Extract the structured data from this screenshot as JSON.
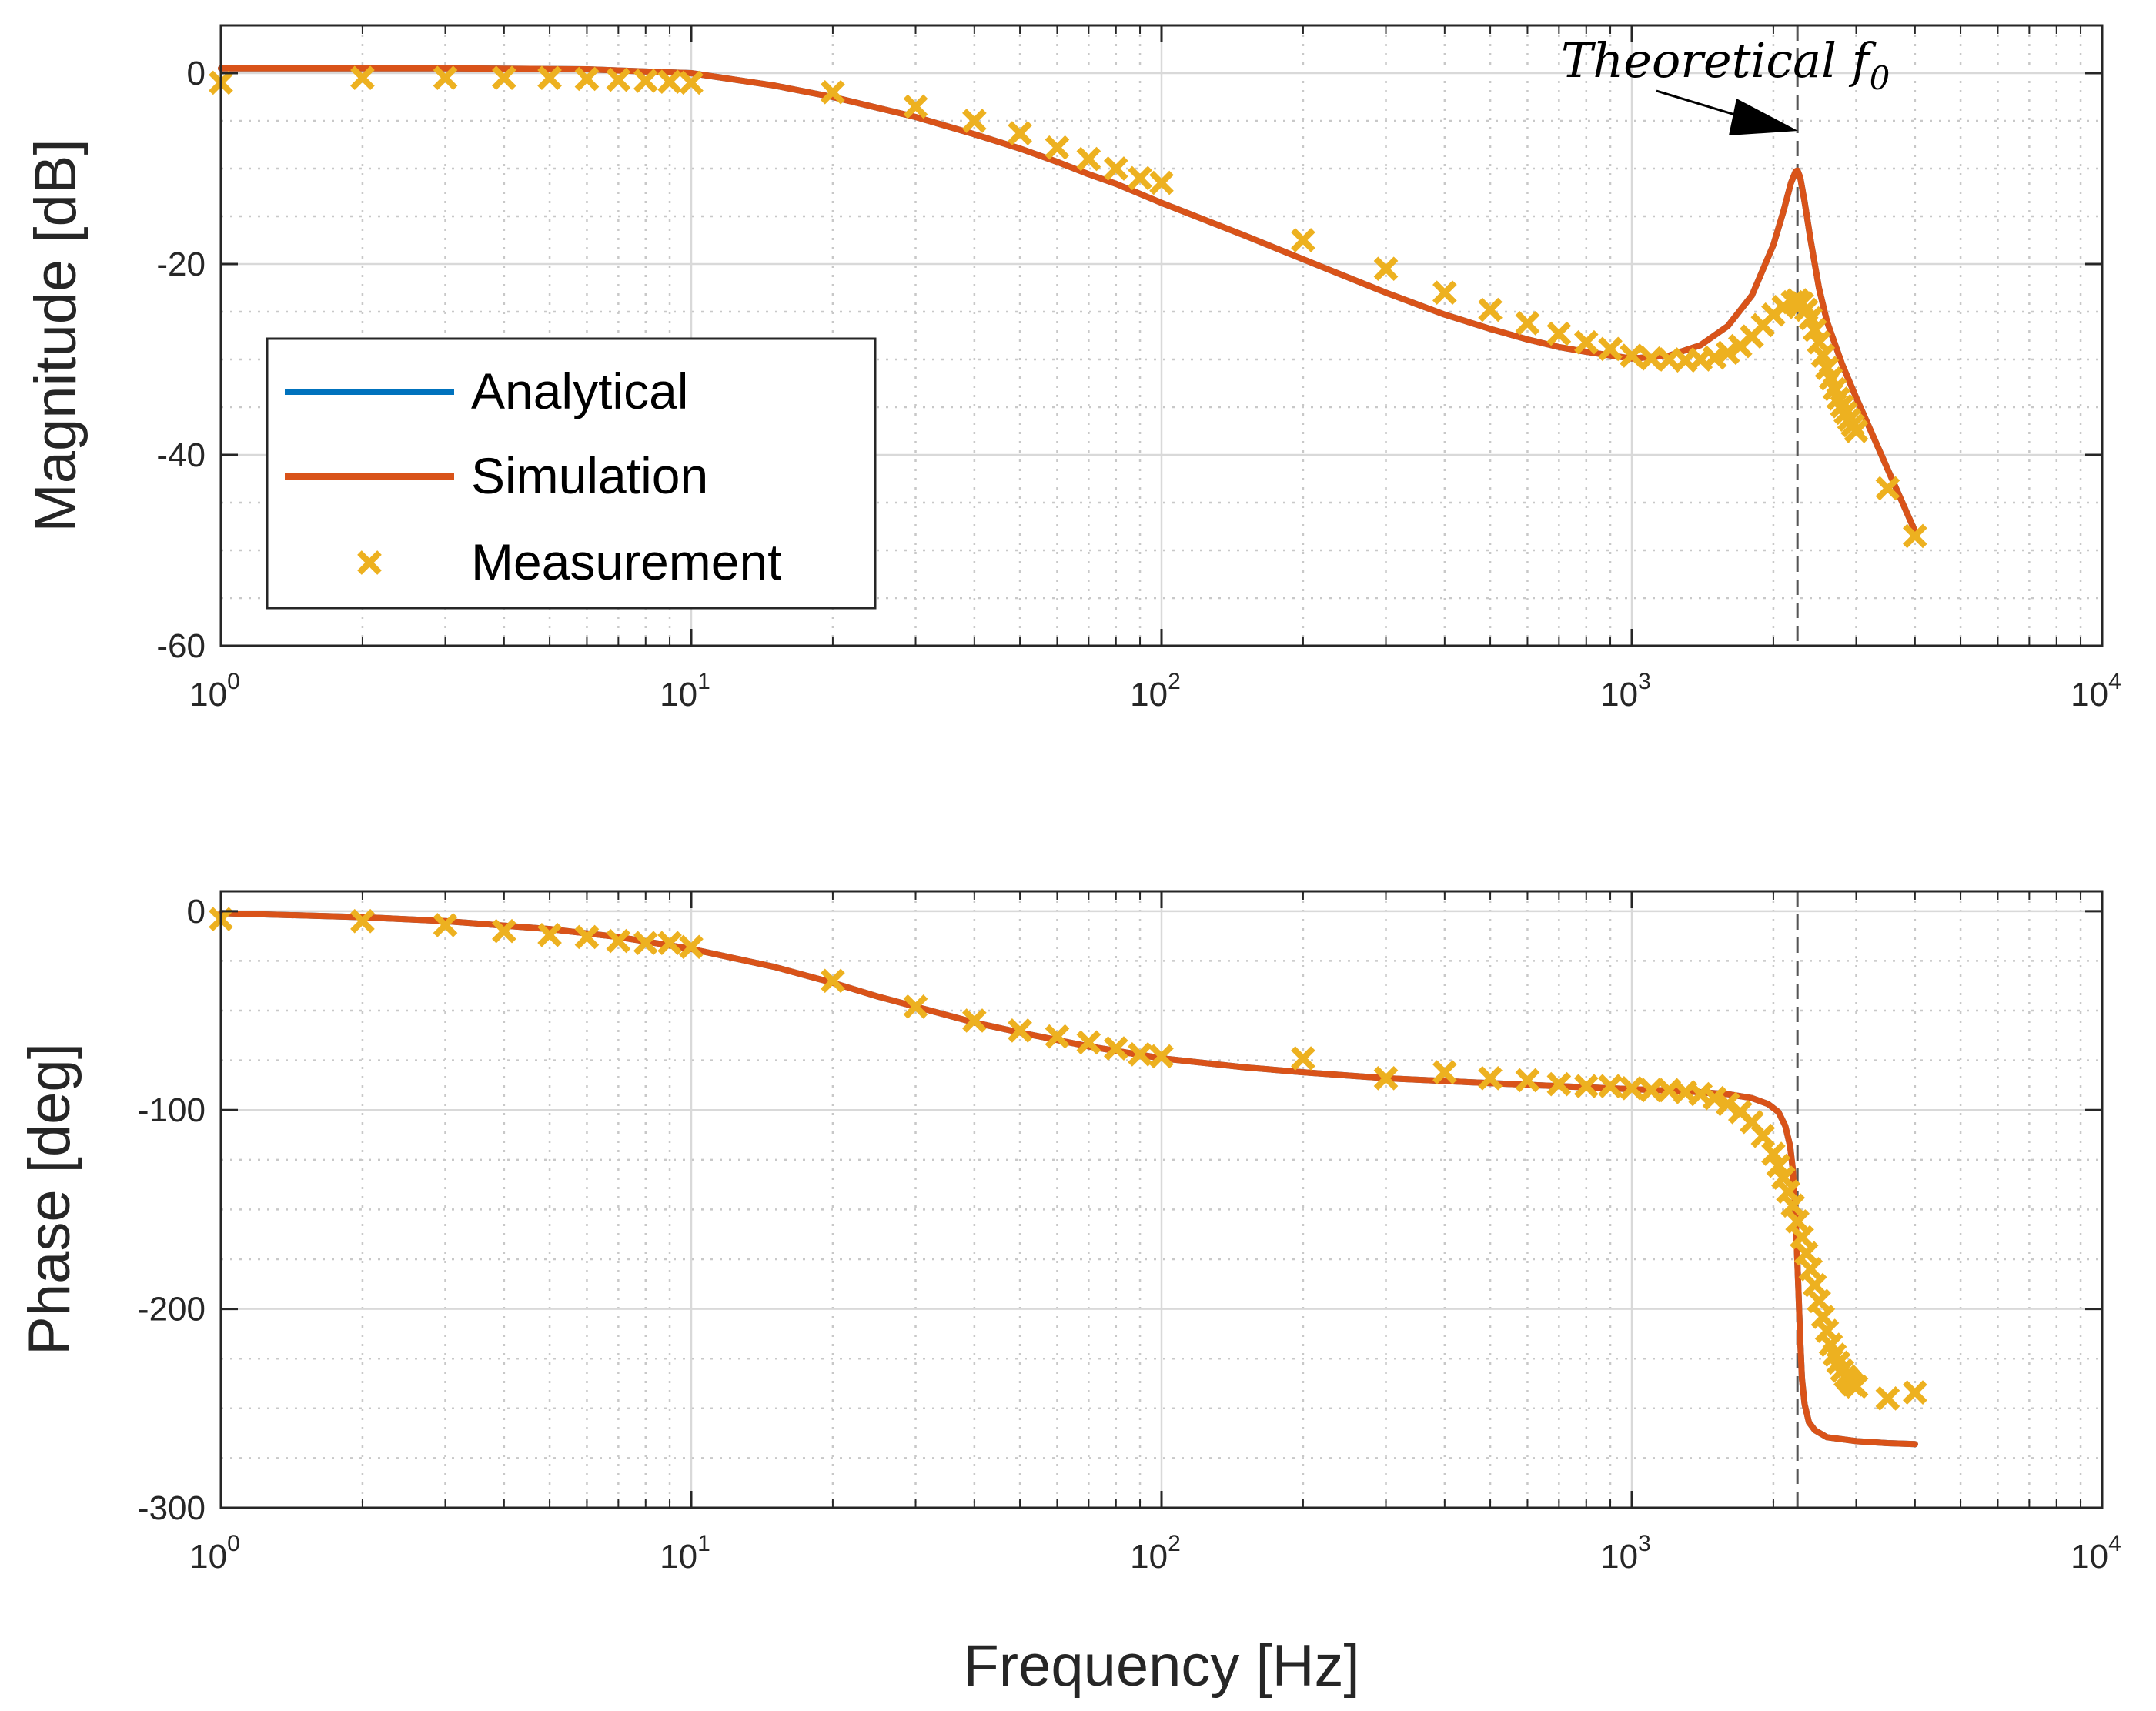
{
  "colors": {
    "analytical": "#0072BD",
    "simulation": "#D95319",
    "measurement": "#EDB120",
    "axis": "#262626",
    "grid": "#d9d9d9",
    "marker_line": "#555555"
  },
  "chart_data": [
    {
      "type": "line",
      "panel": "magnitude",
      "xscale": "log",
      "xlim": [
        1,
        10000
      ],
      "ylim": [
        -60,
        5
      ],
      "yticks": [
        0,
        -20,
        -40,
        -60
      ],
      "ytick_labels": [
        "0",
        "-20",
        "-40",
        "-60"
      ],
      "xtick_bases": [
        "10",
        "10",
        "10",
        "10",
        "10"
      ],
      "xtick_exponents": [
        "0",
        "1",
        "2",
        "3",
        "4"
      ],
      "xlabel": "",
      "ylabel": "Magnitude [dB]",
      "grid": true,
      "legend": {
        "location": "middle-left",
        "entries": [
          "Analytical",
          "Simulation",
          "Measurement"
        ]
      },
      "annotation": {
        "text": "Theoretical f",
        "subscript": "0",
        "x": 2250
      },
      "series": [
        {
          "name": "Analytical",
          "style": "line",
          "x": [
            1,
            3,
            6,
            10,
            15,
            20,
            30,
            40,
            50,
            60,
            70,
            80,
            100,
            150,
            200,
            300,
            400,
            500,
            600,
            700,
            800,
            1000,
            1200,
            1400,
            1600,
            1800,
            2000,
            2100,
            2180,
            2230,
            2250,
            2280,
            2330,
            2400,
            2500,
            2600,
            2800,
            3000,
            3500,
            4000
          ],
          "values": [
            0.5,
            0.5,
            0.4,
            0.0,
            -1.3,
            -2.5,
            -4.6,
            -6.4,
            -7.9,
            -9.3,
            -10.6,
            -11.6,
            -13.6,
            -17.0,
            -19.5,
            -23.0,
            -25.3,
            -26.8,
            -27.9,
            -28.7,
            -29.2,
            -29.9,
            -29.6,
            -28.5,
            -26.5,
            -23.3,
            -18.0,
            -14.5,
            -11.5,
            -10.3,
            -10.2,
            -10.9,
            -13.5,
            -17.5,
            -22.5,
            -26.0,
            -30.5,
            -34.0,
            -41.5,
            -48.0
          ]
        },
        {
          "name": "Simulation",
          "style": "line",
          "x": [
            1,
            3,
            6,
            10,
            15,
            20,
            30,
            40,
            50,
            60,
            70,
            80,
            100,
            150,
            200,
            300,
            400,
            500,
            600,
            700,
            800,
            1000,
            1200,
            1400,
            1600,
            1800,
            2000,
            2100,
            2180,
            2230,
            2250,
            2280,
            2330,
            2400,
            2500,
            2600,
            2800,
            3000,
            3500,
            4000
          ],
          "values": [
            0.5,
            0.5,
            0.4,
            0.0,
            -1.3,
            -2.5,
            -4.6,
            -6.4,
            -7.9,
            -9.3,
            -10.6,
            -11.6,
            -13.6,
            -17.0,
            -19.5,
            -23.0,
            -25.3,
            -26.8,
            -27.9,
            -28.7,
            -29.2,
            -29.9,
            -29.6,
            -28.5,
            -26.5,
            -23.3,
            -18.0,
            -14.5,
            -11.5,
            -10.3,
            -10.2,
            -10.9,
            -13.5,
            -17.5,
            -22.5,
            -26.0,
            -30.5,
            -34.0,
            -41.5,
            -48.0
          ]
        },
        {
          "name": "Measurement",
          "style": "marker",
          "x": [
            1,
            2,
            3,
            4,
            5,
            6,
            7,
            8,
            9,
            10,
            20,
            30,
            40,
            50,
            60,
            70,
            80,
            90,
            100,
            200,
            300,
            400,
            500,
            600,
            700,
            800,
            900,
            1000,
            1100,
            1200,
            1300,
            1400,
            1500,
            1600,
            1700,
            1800,
            1900,
            2000,
            2100,
            2200,
            2250,
            2300,
            2350,
            2400,
            2450,
            2500,
            2550,
            2600,
            2650,
            2700,
            2750,
            2800,
            2850,
            2900,
            2950,
            3000,
            3500,
            4000
          ],
          "values": [
            -1.0,
            -0.5,
            -0.5,
            -0.5,
            -0.5,
            -0.6,
            -0.7,
            -0.8,
            -0.9,
            -1.0,
            -2.0,
            -3.5,
            -5.0,
            -6.3,
            -7.8,
            -9.0,
            -10.0,
            -11.0,
            -11.5,
            -17.5,
            -20.5,
            -23.0,
            -24.8,
            -26.2,
            -27.3,
            -28.2,
            -28.9,
            -29.6,
            -29.9,
            -30.0,
            -30.1,
            -30.0,
            -29.8,
            -29.3,
            -28.6,
            -27.6,
            -26.4,
            -25.3,
            -24.5,
            -24.0,
            -23.8,
            -24.1,
            -24.8,
            -25.7,
            -26.9,
            -28.2,
            -29.6,
            -30.9,
            -32.0,
            -33.1,
            -34.1,
            -34.9,
            -35.6,
            -36.3,
            -36.9,
            -37.5,
            -43.5,
            -48.5
          ]
        }
      ]
    },
    {
      "type": "line",
      "panel": "phase",
      "xscale": "log",
      "xlim": [
        1,
        10000
      ],
      "ylim": [
        -300,
        10
      ],
      "yticks": [
        0,
        -100,
        -200,
        -300
      ],
      "ytick_labels": [
        "0",
        "-100",
        "-200",
        "-300"
      ],
      "xtick_bases": [
        "10",
        "10",
        "10",
        "10",
        "10"
      ],
      "xtick_exponents": [
        "0",
        "1",
        "2",
        "3",
        "4"
      ],
      "xlabel": "Frequency [Hz]",
      "ylabel": "Phase [deg]",
      "grid": true,
      "series": [
        {
          "name": "Analytical",
          "style": "line",
          "x": [
            1,
            2,
            3,
            5,
            7,
            10,
            15,
            20,
            25,
            30,
            40,
            50,
            70,
            100,
            150,
            200,
            300,
            500,
            700,
            1000,
            1300,
            1600,
            1800,
            1950,
            2050,
            2120,
            2170,
            2200,
            2220,
            2240,
            2260,
            2280,
            2300,
            2330,
            2380,
            2450,
            2600,
            3000,
            3500,
            4000
          ],
          "values": [
            -1,
            -3,
            -5,
            -9,
            -13,
            -19,
            -28,
            -36,
            -43,
            -48,
            -56,
            -61,
            -68,
            -74,
            -78.5,
            -81,
            -84,
            -86.5,
            -88,
            -89.5,
            -90.5,
            -92,
            -94,
            -97,
            -101,
            -108,
            -118,
            -130,
            -145,
            -165,
            -190,
            -215,
            -235,
            -248,
            -257,
            -261,
            -264.5,
            -266.5,
            -267.5,
            -268
          ]
        },
        {
          "name": "Simulation",
          "style": "line",
          "x": [
            1,
            2,
            3,
            5,
            7,
            10,
            15,
            20,
            25,
            30,
            40,
            50,
            70,
            100,
            150,
            200,
            300,
            500,
            700,
            1000,
            1300,
            1600,
            1800,
            1950,
            2050,
            2120,
            2170,
            2200,
            2220,
            2240,
            2260,
            2280,
            2300,
            2330,
            2380,
            2450,
            2600,
            3000,
            3500,
            4000
          ],
          "values": [
            -1,
            -3,
            -5,
            -9,
            -13,
            -19,
            -28,
            -36,
            -43,
            -48,
            -56,
            -61,
            -68,
            -74,
            -78.5,
            -81,
            -84,
            -86.5,
            -88,
            -89.5,
            -90.5,
            -92,
            -94,
            -97,
            -101,
            -108,
            -118,
            -130,
            -145,
            -165,
            -190,
            -215,
            -235,
            -248,
            -257,
            -261,
            -264.5,
            -266.5,
            -267.5,
            -268
          ]
        },
        {
          "name": "Measurement",
          "style": "marker",
          "x": [
            1,
            2,
            3,
            4,
            5,
            6,
            7,
            8,
            9,
            10,
            20,
            30,
            40,
            50,
            60,
            70,
            80,
            90,
            100,
            200,
            300,
            400,
            500,
            600,
            700,
            800,
            900,
            1000,
            1100,
            1200,
            1300,
            1400,
            1500,
            1600,
            1700,
            1800,
            1900,
            2000,
            2050,
            2100,
            2150,
            2200,
            2250,
            2300,
            2350,
            2400,
            2450,
            2500,
            2550,
            2600,
            2650,
            2700,
            2750,
            2800,
            2850,
            2900,
            2950,
            3000,
            3500,
            4000
          ],
          "values": [
            -4,
            -5,
            -7,
            -10,
            -12,
            -13,
            -15,
            -16,
            -16,
            -18,
            -35,
            -48,
            -55,
            -60,
            -63,
            -66,
            -69,
            -72,
            -73,
            -74,
            -84,
            -81,
            -84,
            -85,
            -87,
            -88,
            -88,
            -89,
            -90,
            -90,
            -91,
            -92,
            -94,
            -97,
            -101,
            -106,
            -113,
            -122,
            -128,
            -134,
            -141,
            -148,
            -156,
            -164,
            -172,
            -180,
            -188,
            -196,
            -204,
            -211,
            -218,
            -223,
            -227,
            -231,
            -234,
            -236,
            -238,
            -239,
            -245,
            -242
          ]
        }
      ]
    }
  ]
}
